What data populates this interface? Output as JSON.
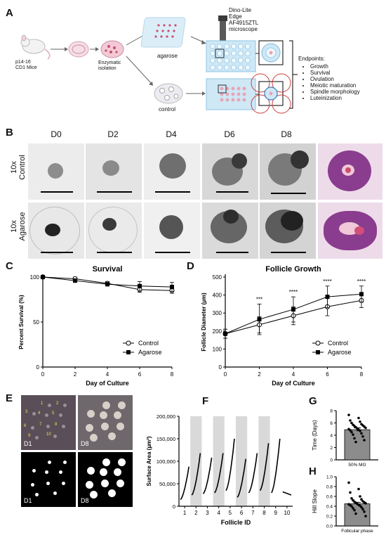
{
  "panel_letters": [
    "A",
    "B",
    "C",
    "D",
    "E",
    "F",
    "G",
    "H"
  ],
  "schematic": {
    "mice_label": "p14-16\nCD1 Mice",
    "isolation_label": "Enzymatic\nisolation",
    "agarose_label": "agarose",
    "control_label": "control",
    "microscope_label": "Dino-Lite\nEdge\nAF4915ZTL\nmicroscope",
    "endpoints_title": "Endpoints:",
    "endpoints": [
      "Growth",
      "Survival",
      "Ovulation",
      "Meiotic maturation",
      "Spindle morphology",
      "Luteinization"
    ]
  },
  "micrographs": {
    "days": [
      "D0",
      "D2",
      "D4",
      "D6",
      "D8"
    ],
    "rows": [
      "10x\nControl",
      "10x\nAgarose"
    ]
  },
  "chart_data": [
    {
      "type": "line",
      "panel": "C",
      "title": "Survival",
      "xlabel": "Day of Culture",
      "ylabel": "Percent Survival (%)",
      "xlim": [
        0,
        8
      ],
      "ylim": [
        0,
        100
      ],
      "xticks": [
        "0",
        "2",
        "4",
        "6",
        "8"
      ],
      "yticks": [
        "0",
        "50",
        "100"
      ],
      "x": [
        0,
        2,
        4,
        6,
        8
      ],
      "series": [
        {
          "name": "Control",
          "marker": "open-circle",
          "values": [
            100,
            98,
            93,
            86,
            85
          ],
          "err": [
            2,
            2,
            2,
            3,
            3
          ]
        },
        {
          "name": "Agarose",
          "marker": "filled-square",
          "values": [
            100,
            96,
            92,
            90,
            89
          ],
          "err": [
            2,
            2,
            2,
            5,
            5
          ]
        }
      ],
      "legend": "bottom-right"
    },
    {
      "type": "line",
      "panel": "D",
      "title": "Follicle Growth",
      "xlabel": "Day of Culture",
      "ylabel": "Follicle Diameter (µm)",
      "xlim": [
        0,
        8
      ],
      "ylim": [
        0,
        500
      ],
      "xticks": [
        "0",
        "2",
        "4",
        "6",
        "8"
      ],
      "yticks": [
        "0",
        "100",
        "200",
        "300",
        "400",
        "500"
      ],
      "x": [
        0,
        2,
        4,
        6,
        8
      ],
      "series": [
        {
          "name": "Control",
          "marker": "open-circle",
          "values": [
            185,
            235,
            285,
            335,
            370
          ],
          "err": [
            25,
            45,
            50,
            50,
            40
          ]
        },
        {
          "name": "Agarose",
          "marker": "filled-square",
          "values": [
            185,
            265,
            320,
            390,
            405
          ],
          "err": [
            25,
            85,
            70,
            60,
            45
          ]
        }
      ],
      "annotations": [
        {
          "x": 2,
          "text": "***"
        },
        {
          "x": 4,
          "text": "****"
        },
        {
          "x": 6,
          "text": "****"
        },
        {
          "x": 8,
          "text": "****"
        }
      ],
      "legend": "bottom-right"
    },
    {
      "type": "line",
      "panel": "F",
      "xlabel": "Follicle ID",
      "ylabel": "Surface Area (µm²)",
      "ylim": [
        0,
        200000
      ],
      "yticks": [
        "0",
        "50,000",
        "100,000",
        "150,000",
        "200,000"
      ],
      "categories": [
        "1",
        "2",
        "3",
        "4",
        "5",
        "6",
        "7",
        "8",
        "9",
        "10"
      ],
      "series": [
        {
          "name": "1",
          "start": 15000,
          "end": 88000
        },
        {
          "name": "2",
          "start": 25000,
          "end": 118000
        },
        {
          "name": "3",
          "start": 28000,
          "end": 108000
        },
        {
          "name": "4",
          "start": 30000,
          "end": 118000
        },
        {
          "name": "5",
          "start": 35000,
          "end": 150000
        },
        {
          "name": "6",
          "start": 20000,
          "end": 105000
        },
        {
          "name": "7",
          "start": 30000,
          "end": 118000
        },
        {
          "name": "8",
          "start": 35000,
          "end": 140000
        },
        {
          "name": "9",
          "start": 30000,
          "end": 150000
        },
        {
          "name": "10",
          "start": 32000,
          "end": 25000
        }
      ]
    },
    {
      "type": "bar",
      "panel": "G",
      "ylabel": "Time (Days)",
      "categories": [
        "50% MG"
      ],
      "values": [
        4.9
      ],
      "err": [
        0.3
      ],
      "ylim": [
        0,
        8
      ],
      "yticks": [
        "0",
        "2",
        "4",
        "6",
        "8"
      ],
      "points": [
        7.3,
        6.8,
        6.4,
        6.2,
        6.0,
        5.8,
        5.7,
        5.6,
        5.5,
        5.4,
        5.3,
        5.2,
        5.1,
        5.0,
        4.9,
        4.8,
        4.7,
        4.5,
        4.3,
        4.1,
        3.8,
        3.5,
        3.2,
        2.9
      ]
    },
    {
      "type": "bar",
      "panel": "H",
      "ylabel": "Hill Slope",
      "categories": [
        "Follicular phase"
      ],
      "values": [
        0.45
      ],
      "err": [
        0.03
      ],
      "ylim": [
        0,
        1
      ],
      "yticks": [
        "0.0",
        "0.2",
        "0.4",
        "0.6",
        "0.8",
        "1.0"
      ],
      "points": [
        0.88,
        0.75,
        0.68,
        0.6,
        0.56,
        0.54,
        0.52,
        0.5,
        0.49,
        0.48,
        0.47,
        0.46,
        0.45,
        0.44,
        0.43,
        0.42,
        0.41,
        0.4,
        0.38,
        0.36,
        0.34,
        0.32,
        0.29,
        0.25,
        0.2
      ]
    }
  ],
  "panelE": {
    "labels": [
      "D1",
      "D8",
      "D1",
      "D8"
    ],
    "numbers": [
      "1",
      "2",
      "3",
      "4",
      "5",
      "6",
      "7",
      "8",
      "9",
      "10"
    ]
  },
  "colors": {
    "bg": "#ffffff",
    "axis": "#000000",
    "shade": "#d9d9d9",
    "pink": "#e9b7c8",
    "blue": "#6fb4e2",
    "red": "#c94040",
    "histo": "#8a3d8f"
  }
}
